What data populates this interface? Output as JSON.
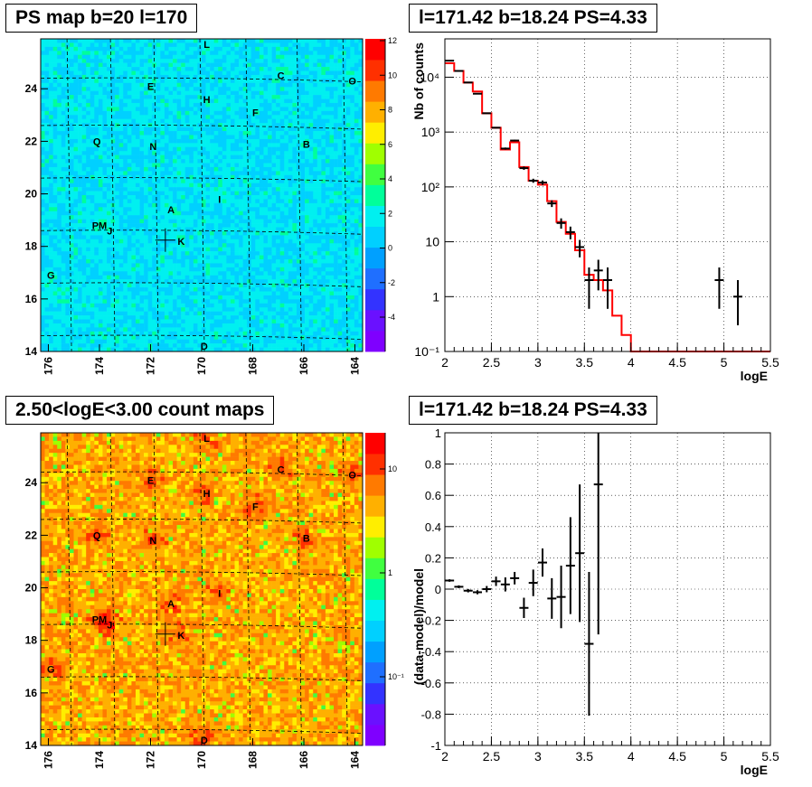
{
  "chart_data": [
    {
      "type": "heatmap",
      "title": "PS map b=20 l=170",
      "x_ticks": [
        "176",
        "174",
        "172",
        "170",
        "168",
        "166",
        "164"
      ],
      "y_ticks": [
        "14",
        "16",
        "18",
        "20",
        "22",
        "24"
      ],
      "colorbar_ticks": [
        "12",
        "10",
        "8",
        "6",
        "4",
        "2",
        "0",
        "-2",
        "-4"
      ],
      "sources": [
        {
          "label": "L",
          "l": 169.8,
          "b": 25.7
        },
        {
          "label": "C",
          "l": 166.9,
          "b": 24.5
        },
        {
          "label": "O",
          "l": 164.1,
          "b": 24.3
        },
        {
          "label": "E",
          "l": 172.0,
          "b": 24.1
        },
        {
          "label": "H",
          "l": 169.8,
          "b": 23.6
        },
        {
          "label": "F",
          "l": 167.9,
          "b": 23.1
        },
        {
          "label": "Q",
          "l": 174.1,
          "b": 22.0
        },
        {
          "label": "N",
          "l": 171.9,
          "b": 21.8
        },
        {
          "label": "B",
          "l": 165.9,
          "b": 21.9
        },
        {
          "label": "I",
          "l": 169.3,
          "b": 19.8
        },
        {
          "label": "A",
          "l": 171.2,
          "b": 19.4
        },
        {
          "label": "PM",
          "l": 174.0,
          "b": 18.8
        },
        {
          "label": "J",
          "l": 173.6,
          "b": 18.6
        },
        {
          "label": "K",
          "l": 170.8,
          "b": 18.2
        },
        {
          "label": "G",
          "l": 175.9,
          "b": 16.9
        },
        {
          "label": "D",
          "l": 169.9,
          "b": 14.2
        }
      ],
      "marker": {
        "l": 171.42,
        "b": 18.24
      }
    },
    {
      "type": "line",
      "title": "l=171.42 b=18.24 PS=4.33",
      "xlabel": "logE",
      "ylabel": "Nb of counts",
      "xlim": [
        2,
        5.5
      ],
      "ylim": [
        0.1,
        50000
      ],
      "yscale": "log",
      "grid": true,
      "x_ticks": [
        "2",
        "2.5",
        "3",
        "3.5",
        "4",
        "4.5",
        "5",
        "5.5"
      ],
      "y_ticks": [
        "10⁻¹",
        "1",
        "10",
        "10²",
        "10³",
        "10⁴"
      ],
      "series": [
        {
          "role": "data",
          "x": [
            2.05,
            2.15,
            2.25,
            2.35,
            2.45,
            2.55,
            2.65,
            2.75,
            2.85,
            2.95,
            3.05,
            3.15,
            3.25,
            3.35,
            3.45,
            3.55,
            3.65,
            3.75,
            4.95,
            5.15
          ],
          "y": [
            20000,
            13000,
            8000,
            5000,
            2200,
            1200,
            500,
            700,
            220,
            130,
            120,
            50,
            22,
            15,
            8,
            2,
            3,
            2,
            2,
            1
          ],
          "yerr_lo": [
            141,
            114,
            89,
            71,
            47,
            35,
            22,
            26,
            15,
            11,
            11,
            7,
            4.7,
            3.9,
            2.8,
            1.4,
            1.7,
            1.4,
            1.4,
            1
          ],
          "yerr_hi": [
            141,
            114,
            89,
            71,
            47,
            35,
            22,
            26,
            15,
            11,
            11,
            7,
            4.7,
            3.9,
            2.8,
            1.4,
            1.7,
            1.4,
            1.4,
            1
          ]
        },
        {
          "role": "model",
          "color": "#ff0000",
          "edges": [
            2.0,
            2.1,
            2.2,
            2.3,
            2.4,
            2.5,
            2.6,
            2.7,
            2.8,
            2.9,
            3.0,
            3.1,
            3.2,
            3.3,
            3.4,
            3.5,
            3.6,
            3.7,
            3.8,
            3.9,
            4.0,
            5.5
          ],
          "values": [
            18000,
            13000,
            8000,
            5500,
            2200,
            1200,
            480,
            650,
            230,
            130,
            110,
            55,
            23,
            14,
            7,
            2.5,
            2,
            1.3,
            0.45,
            0.2,
            0.1
          ]
        }
      ]
    },
    {
      "type": "heatmap",
      "title": "2.50<logE<3.00 count maps",
      "x_ticks": [
        "176",
        "174",
        "172",
        "170",
        "168",
        "166",
        "164"
      ],
      "y_ticks": [
        "14",
        "16",
        "18",
        "20",
        "22",
        "24"
      ],
      "colorbar_ticks": [
        "10",
        "1",
        "10⁻¹"
      ],
      "colorbar_scale": "log"
    },
    {
      "type": "scatter",
      "title": "l=171.42 b=18.24 PS=4.33",
      "xlabel": "logE",
      "ylabel": "(data-model)/model",
      "xlim": [
        2,
        5.5
      ],
      "ylim": [
        -1,
        1
      ],
      "grid": true,
      "x_ticks": [
        "2",
        "2.5",
        "3",
        "3.5",
        "4",
        "4.5",
        "5",
        "5.5"
      ],
      "y_ticks": [
        "-1",
        "-0.8",
        "-0.6",
        "-0.4",
        "-0.2",
        "0",
        "0.2",
        "0.4",
        "0.6",
        "0.8",
        "1"
      ],
      "points": [
        {
          "x": 2.05,
          "y": 0.055,
          "err": 0.008
        },
        {
          "x": 2.15,
          "y": 0.015,
          "err": 0.009
        },
        {
          "x": 2.25,
          "y": -0.01,
          "err": 0.011
        },
        {
          "x": 2.35,
          "y": -0.02,
          "err": 0.013
        },
        {
          "x": 2.45,
          "y": 0.0,
          "err": 0.02
        },
        {
          "x": 2.55,
          "y": 0.05,
          "err": 0.03
        },
        {
          "x": 2.65,
          "y": 0.03,
          "err": 0.045
        },
        {
          "x": 2.75,
          "y": 0.07,
          "err": 0.04
        },
        {
          "x": 2.85,
          "y": -0.12,
          "err": 0.065
        },
        {
          "x": 2.95,
          "y": 0.04,
          "err": 0.085
        },
        {
          "x": 3.05,
          "y": 0.17,
          "err": 0.09
        },
        {
          "x": 3.15,
          "y": -0.06,
          "err": 0.13
        },
        {
          "x": 3.25,
          "y": -0.05,
          "err": 0.2
        },
        {
          "x": 3.35,
          "y": 0.15,
          "err": 0.31
        },
        {
          "x": 3.45,
          "y": 0.23,
          "err": 0.44
        },
        {
          "x": 3.55,
          "y": -0.35,
          "err": 0.46
        },
        {
          "x": 3.65,
          "y": 0.67,
          "err": 0.96
        }
      ]
    }
  ]
}
